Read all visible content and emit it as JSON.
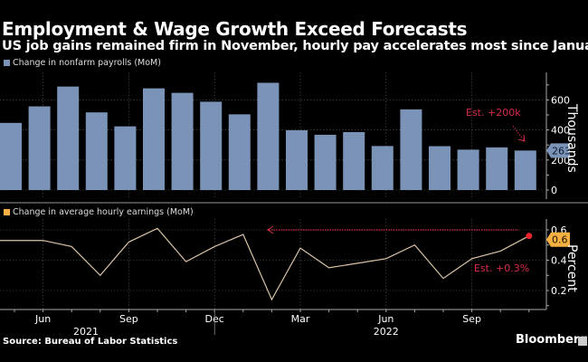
{
  "header": {
    "title": "Employment & Wage Growth Exceed Forecasts",
    "subtitle": "US job gains remained firm in November, hourly pay accelerates most since January"
  },
  "footer": {
    "source": "Source: Bureau of Labor Statistics",
    "brand": "Bloomberg"
  },
  "colors": {
    "background": "#000000",
    "bars": "#7b93b6",
    "line": "#d9c3a5",
    "legend_line_swatch": "#f5b041",
    "annotation": "#d62d4a",
    "value_tag_bars": "#7b93b6",
    "value_tag_line": "#f5b041",
    "grid": "#555555"
  },
  "chart_data": [
    {
      "type": "bar",
      "legend": "Change in nonfarm payrolls (MoM)",
      "ylabel": "Thousands",
      "ylim": [
        -60,
        800
      ],
      "yticks": [
        0,
        200,
        400,
        600
      ],
      "grid": true,
      "categories": [
        "May 2021",
        "Jun 2021",
        "Jul 2021",
        "Aug 2021",
        "Sep 2021",
        "Oct 2021",
        "Nov 2021",
        "Dec 2021",
        "Jan 2022",
        "Feb 2022",
        "Mar 2022",
        "Apr 2022",
        "May 2022",
        "Jun 2022",
        "Jul 2022",
        "Aug 2022",
        "Sep 2022",
        "Oct 2022",
        "Nov 2022"
      ],
      "values": [
        447,
        557,
        689,
        517,
        424,
        677,
        647,
        588,
        504,
        714,
        398,
        368,
        386,
        293,
        537,
        292,
        269,
        284,
        263
      ],
      "last_value_label": "263",
      "annotation": "Est. +200k"
    },
    {
      "type": "line",
      "legend": "Change in average hourly earnings (MoM)",
      "ylabel": "Percent",
      "ylim": [
        0.08,
        0.68
      ],
      "yticks": [
        0.2,
        0.4,
        0.6
      ],
      "grid": true,
      "categories": [
        "May 2021",
        "Jun 2021",
        "Jul 2021",
        "Aug 2021",
        "Sep 2021",
        "Oct 2021",
        "Nov 2021",
        "Dec 2021",
        "Jan 2022",
        "Feb 2022",
        "Mar 2022",
        "Apr 2022",
        "May 2022",
        "Jun 2022",
        "Jul 2022",
        "Aug 2022",
        "Sep 2022",
        "Oct 2022",
        "Nov 2022"
      ],
      "values": [
        0.53,
        0.53,
        0.49,
        0.3,
        0.52,
        0.61,
        0.39,
        0.49,
        0.57,
        0.14,
        0.48,
        0.35,
        0.38,
        0.41,
        0.5,
        0.28,
        0.41,
        0.46,
        0.56
      ],
      "last_value_label": "0.6",
      "reference_level": 0.6,
      "annotation": "Est. +0.3%"
    }
  ],
  "x_axis": {
    "month_labels": [
      {
        "label": "Jun",
        "index": 1
      },
      {
        "label": "Sep",
        "index": 4
      },
      {
        "label": "Dec",
        "index": 7
      },
      {
        "label": "Mar",
        "index": 10
      },
      {
        "label": "Jun",
        "index": 13
      },
      {
        "label": "Sep",
        "index": 16
      }
    ],
    "year_labels": [
      {
        "label": "2021",
        "index": 2.5
      },
      {
        "label": "2022",
        "index": 13
      }
    ]
  }
}
